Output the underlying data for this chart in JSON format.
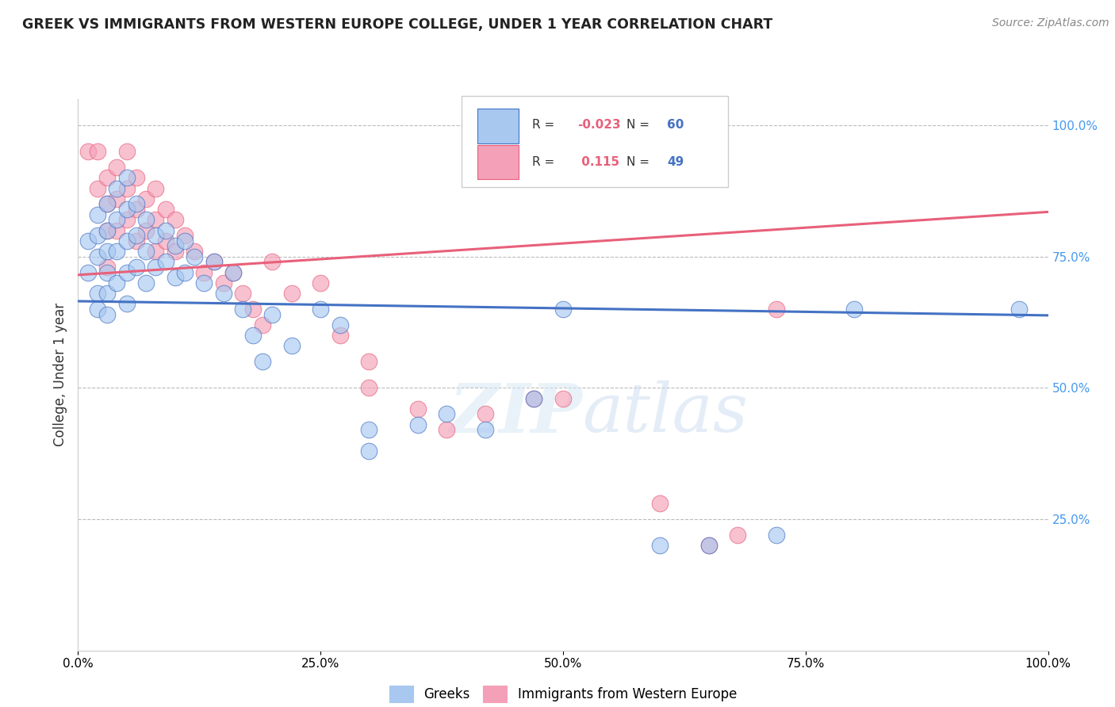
{
  "title": "GREEK VS IMMIGRANTS FROM WESTERN EUROPE COLLEGE, UNDER 1 YEAR CORRELATION CHART",
  "source": "Source: ZipAtlas.com",
  "ylabel": "College, Under 1 year",
  "legend_bottom": [
    "Greeks",
    "Immigrants from Western Europe"
  ],
  "r_greek": -0.023,
  "n_greek": 60,
  "r_western": 0.115,
  "n_western": 49,
  "xlim": [
    0.0,
    1.0
  ],
  "ylim": [
    0.0,
    1.0
  ],
  "xtick_labels": [
    "0.0%",
    "25.0%",
    "50.0%",
    "75.0%",
    "100.0%"
  ],
  "xtick_vals": [
    0.0,
    0.25,
    0.5,
    0.75,
    1.0
  ],
  "ytick_labels": [
    "25.0%",
    "50.0%",
    "75.0%",
    "100.0%"
  ],
  "ytick_vals": [
    0.25,
    0.5,
    0.75,
    1.0
  ],
  "color_greek": "#A8C8F0",
  "color_western": "#F4A0B8",
  "line_color_greek": "#4472C4",
  "line_color_western": "#E8607A",
  "background_color": "#FFFFFF",
  "greek_x": [
    0.01,
    0.01,
    0.02,
    0.02,
    0.02,
    0.02,
    0.02,
    0.03,
    0.03,
    0.03,
    0.03,
    0.03,
    0.03,
    0.04,
    0.04,
    0.04,
    0.04,
    0.05,
    0.05,
    0.05,
    0.05,
    0.05,
    0.06,
    0.06,
    0.06,
    0.07,
    0.07,
    0.07,
    0.08,
    0.08,
    0.09,
    0.09,
    0.1,
    0.1,
    0.11,
    0.11,
    0.12,
    0.13,
    0.14,
    0.15,
    0.16,
    0.17,
    0.18,
    0.19,
    0.2,
    0.22,
    0.25,
    0.27,
    0.3,
    0.3,
    0.35,
    0.38,
    0.42,
    0.47,
    0.5,
    0.6,
    0.65,
    0.72,
    0.8,
    0.97
  ],
  "greek_y": [
    0.78,
    0.72,
    0.83,
    0.79,
    0.75,
    0.68,
    0.65,
    0.85,
    0.8,
    0.76,
    0.72,
    0.68,
    0.64,
    0.88,
    0.82,
    0.76,
    0.7,
    0.9,
    0.84,
    0.78,
    0.72,
    0.66,
    0.85,
    0.79,
    0.73,
    0.82,
    0.76,
    0.7,
    0.79,
    0.73,
    0.8,
    0.74,
    0.77,
    0.71,
    0.78,
    0.72,
    0.75,
    0.7,
    0.74,
    0.68,
    0.72,
    0.65,
    0.6,
    0.55,
    0.64,
    0.58,
    0.65,
    0.62,
    0.42,
    0.38,
    0.43,
    0.45,
    0.42,
    0.48,
    0.65,
    0.2,
    0.2,
    0.22,
    0.65,
    0.65
  ],
  "western_x": [
    0.01,
    0.02,
    0.02,
    0.03,
    0.03,
    0.03,
    0.03,
    0.04,
    0.04,
    0.04,
    0.05,
    0.05,
    0.05,
    0.06,
    0.06,
    0.06,
    0.07,
    0.07,
    0.08,
    0.08,
    0.08,
    0.09,
    0.09,
    0.1,
    0.1,
    0.11,
    0.12,
    0.13,
    0.14,
    0.15,
    0.16,
    0.17,
    0.18,
    0.19,
    0.2,
    0.22,
    0.25,
    0.27,
    0.3,
    0.3,
    0.35,
    0.38,
    0.42,
    0.47,
    0.5,
    0.6,
    0.65,
    0.68,
    0.72
  ],
  "western_y": [
    0.95,
    0.95,
    0.88,
    0.9,
    0.85,
    0.8,
    0.73,
    0.92,
    0.86,
    0.8,
    0.95,
    0.88,
    0.82,
    0.9,
    0.84,
    0.78,
    0.86,
    0.8,
    0.88,
    0.82,
    0.76,
    0.84,
    0.78,
    0.82,
    0.76,
    0.79,
    0.76,
    0.72,
    0.74,
    0.7,
    0.72,
    0.68,
    0.65,
    0.62,
    0.74,
    0.68,
    0.7,
    0.6,
    0.55,
    0.5,
    0.46,
    0.42,
    0.45,
    0.48,
    0.48,
    0.28,
    0.2,
    0.22,
    0.65
  ],
  "greek_line_x0": 0.0,
  "greek_line_y0": 0.665,
  "greek_line_x1": 1.0,
  "greek_line_y1": 0.638,
  "western_line_x0": 0.0,
  "western_line_y0": 0.715,
  "western_line_x1": 1.0,
  "western_line_y1": 0.835
}
